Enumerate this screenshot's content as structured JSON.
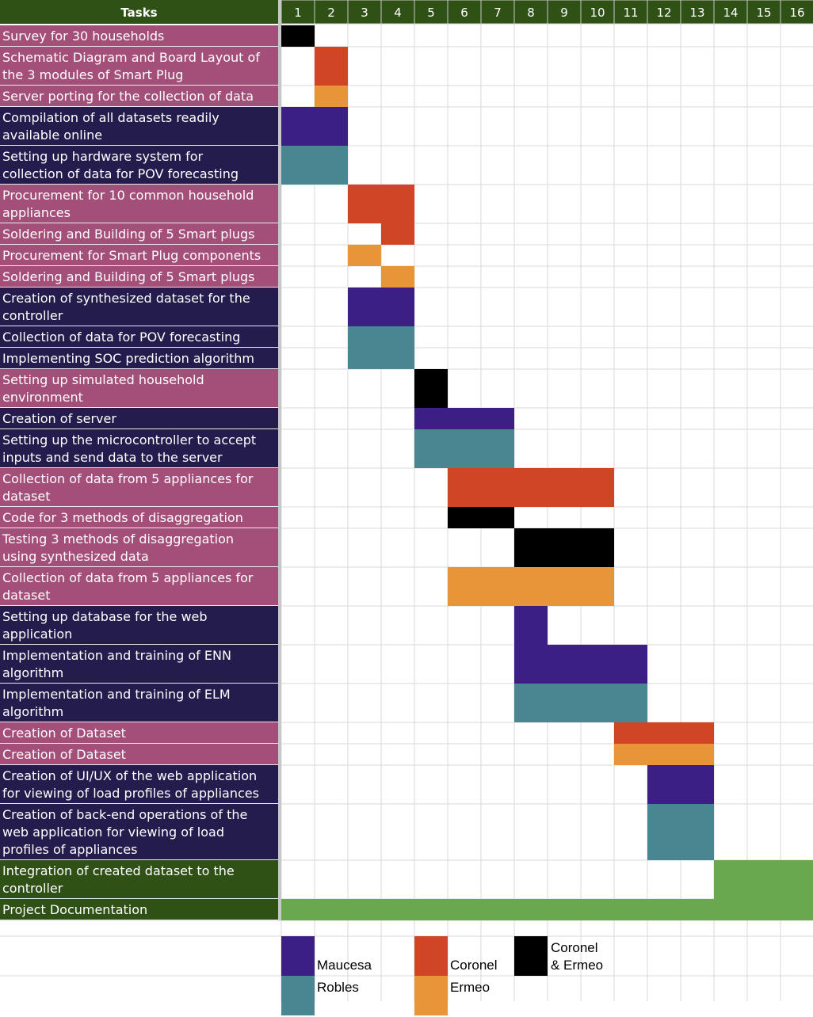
{
  "chart_data": {
    "type": "gantt",
    "header": {
      "tasks_label": "Tasks"
    },
    "weeks": [
      "1",
      "2",
      "3",
      "4",
      "5",
      "6",
      "7",
      "8",
      "9",
      "10",
      "11",
      "12",
      "13",
      "14",
      "15",
      "16"
    ],
    "group_colors": {
      "pink": "#a44f79",
      "navy": "#231c4d",
      "green": "#2f5116"
    },
    "colors": {
      "header_bg": "#2f5116",
      "grid": "#dadada"
    },
    "tasks": [
      {
        "label": [
          "Survey for 30 households"
        ],
        "group": "pink",
        "bars": [
          {
            "start": 1,
            "end": 1,
            "owner": "both"
          }
        ]
      },
      {
        "label": [
          "Schematic Diagram and Board Layout of",
          "the 3 modules of Smart Plug"
        ],
        "group": "pink",
        "bars": [
          {
            "start": 2,
            "end": 2,
            "owner": "coronel"
          }
        ]
      },
      {
        "label": [
          "Server porting for the collection of data"
        ],
        "group": "pink",
        "bars": [
          {
            "start": 2,
            "end": 2,
            "owner": "ermeo"
          }
        ]
      },
      {
        "label": [
          "Compilation of all datasets readily",
          "available online"
        ],
        "group": "navy",
        "bars": [
          {
            "start": 1,
            "end": 2,
            "owner": "maucesa"
          }
        ]
      },
      {
        "label": [
          "Setting up hardware system for",
          "collection of data for POV forecasting"
        ],
        "group": "navy",
        "bars": [
          {
            "start": 1,
            "end": 2,
            "owner": "robles"
          }
        ]
      },
      {
        "label": [
          "Procurement for 10 common household",
          "appliances"
        ],
        "group": "pink",
        "bars": [
          {
            "start": 3,
            "end": 4,
            "owner": "coronel"
          }
        ]
      },
      {
        "label": [
          "Soldering and Building of 5 Smart plugs"
        ],
        "group": "pink",
        "bars": [
          {
            "start": 4,
            "end": 4,
            "owner": "coronel"
          }
        ]
      },
      {
        "label": [
          "Procurement for Smart Plug components"
        ],
        "group": "pink",
        "bars": [
          {
            "start": 3,
            "end": 3,
            "owner": "ermeo"
          }
        ]
      },
      {
        "label": [
          "Soldering and Building of 5 Smart plugs"
        ],
        "group": "pink",
        "bars": [
          {
            "start": 4,
            "end": 4,
            "owner": "ermeo"
          }
        ]
      },
      {
        "label": [
          "Creation of synthesized dataset for the",
          "controller"
        ],
        "group": "navy",
        "bars": [
          {
            "start": 3,
            "end": 4,
            "owner": "maucesa"
          }
        ]
      },
      {
        "label": [
          "Collection of data for POV forecasting"
        ],
        "group": "navy",
        "bars": [
          {
            "start": 3,
            "end": 4,
            "owner": "robles"
          }
        ]
      },
      {
        "label": [
          "Implementing SOC prediction algorithm"
        ],
        "group": "navy",
        "bars": [
          {
            "start": 3,
            "end": 4,
            "owner": "robles"
          }
        ]
      },
      {
        "label": [
          "Setting up simulated household",
          "environment"
        ],
        "group": "pink",
        "bars": [
          {
            "start": 5,
            "end": 5,
            "owner": "both"
          }
        ]
      },
      {
        "label": [
          "Creation of server"
        ],
        "group": "navy",
        "bars": [
          {
            "start": 5,
            "end": 7,
            "owner": "maucesa"
          }
        ]
      },
      {
        "label": [
          "Setting up the microcontroller to accept",
          "inputs and send data to the server"
        ],
        "group": "navy",
        "bars": [
          {
            "start": 5,
            "end": 7,
            "owner": "robles"
          }
        ]
      },
      {
        "label": [
          "Collection of data from 5 appliances for",
          "dataset"
        ],
        "group": "pink",
        "bars": [
          {
            "start": 6,
            "end": 10,
            "owner": "coronel"
          }
        ]
      },
      {
        "label": [
          "Code for 3 methods of disaggregation"
        ],
        "group": "pink",
        "bars": [
          {
            "start": 6,
            "end": 7,
            "owner": "both"
          }
        ]
      },
      {
        "label": [
          "Testing 3 methods of disaggregation",
          "using synthesized data"
        ],
        "group": "pink",
        "bars": [
          {
            "start": 8,
            "end": 10,
            "owner": "both"
          }
        ]
      },
      {
        "label": [
          "Collection of data from 5 appliances for",
          "dataset"
        ],
        "group": "pink",
        "bars": [
          {
            "start": 6,
            "end": 10,
            "owner": "ermeo"
          }
        ]
      },
      {
        "label": [
          "Setting up database for the web",
          "application"
        ],
        "group": "navy",
        "bars": [
          {
            "start": 8,
            "end": 8,
            "owner": "maucesa"
          }
        ]
      },
      {
        "label": [
          "Implementation and training of ENN",
          "algorithm"
        ],
        "group": "navy",
        "bars": [
          {
            "start": 8,
            "end": 11,
            "owner": "maucesa"
          }
        ]
      },
      {
        "label": [
          "Implementation and training of ELM",
          "algorithm"
        ],
        "group": "navy",
        "bars": [
          {
            "start": 8,
            "end": 11,
            "owner": "robles"
          }
        ]
      },
      {
        "label": [
          "Creation of Dataset"
        ],
        "group": "pink",
        "bars": [
          {
            "start": 11,
            "end": 13,
            "owner": "coronel"
          }
        ]
      },
      {
        "label": [
          "Creation of Dataset"
        ],
        "group": "pink",
        "bars": [
          {
            "start": 11,
            "end": 13,
            "owner": "ermeo"
          }
        ]
      },
      {
        "label": [
          "Creation of UI/UX of the web application",
          "for viewing of load profiles of appliances"
        ],
        "group": "navy",
        "bars": [
          {
            "start": 12,
            "end": 13,
            "owner": "maucesa"
          }
        ]
      },
      {
        "label": [
          "Creation of back-end operations of the",
          "web application for viewing of load",
          "profiles of appliances"
        ],
        "group": "navy",
        "bars": [
          {
            "start": 12,
            "end": 13,
            "owner": "robles"
          }
        ]
      },
      {
        "label": [
          "Integration of created dataset to the",
          "controller"
        ],
        "group": "green",
        "bars": [
          {
            "start": 14,
            "end": 16,
            "owner": "all"
          }
        ]
      },
      {
        "label": [
          "Project Documentation"
        ],
        "group": "green",
        "bars": [
          {
            "start": 1,
            "end": 16,
            "owner": "all"
          }
        ]
      }
    ],
    "owners": {
      "maucesa": "#3c1f85",
      "robles": "#4a8691",
      "coronel": "#cf4526",
      "ermeo": "#e8953a",
      "both": "#000000",
      "all": "#6aa84f"
    },
    "legend": [
      {
        "key": "maucesa",
        "text": [
          "Maucesa"
        ]
      },
      {
        "key": "robles",
        "text": [
          "Robles"
        ]
      },
      {
        "key": "coronel",
        "text": [
          "Coronel"
        ]
      },
      {
        "key": "ermeo",
        "text": [
          "Ermeo"
        ]
      },
      {
        "key": "both",
        "text": [
          "Coronel",
          "& Ermeo"
        ]
      }
    ]
  }
}
